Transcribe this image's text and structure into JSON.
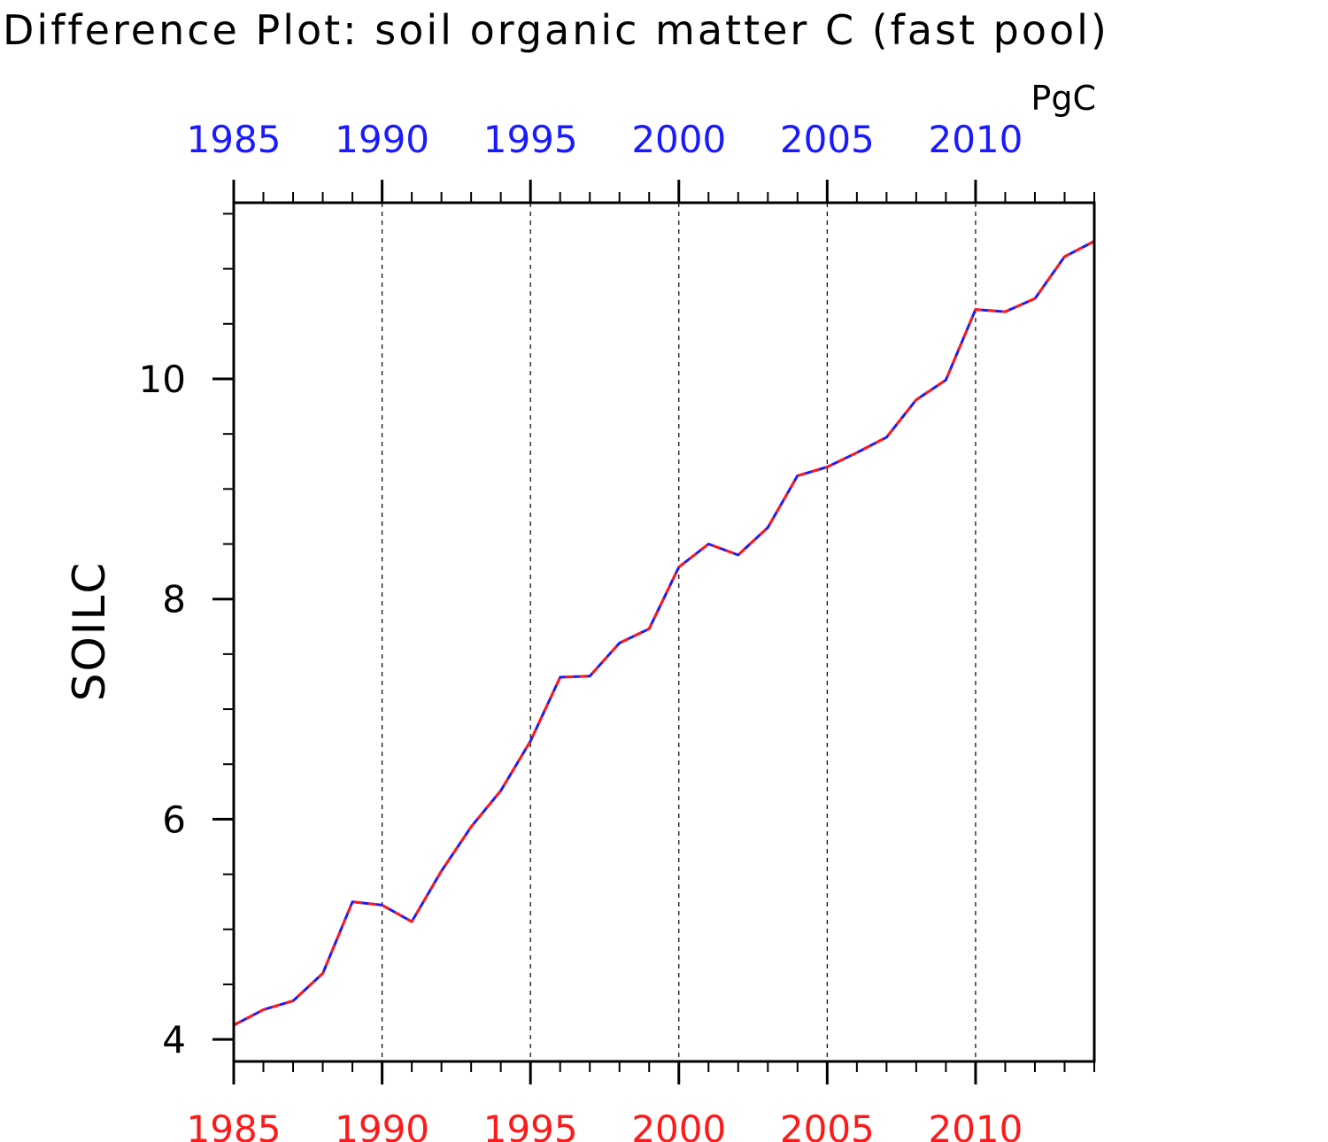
{
  "title": "Difference Plot: soil organic matter C (fast pool)",
  "units": "PgC",
  "colors": {
    "top_axis": "#1a1aff",
    "bottom_axis": "#ff1a1a",
    "axis": "#000000",
    "grid": "#000000"
  },
  "chart_data": {
    "type": "line",
    "title": "Difference Plot: soil organic matter C (fast pool)",
    "units": "PgC",
    "xlabel": "",
    "ylabel": "SOILC",
    "xlim": [
      1985,
      2014
    ],
    "ylim": [
      3.8,
      11.6
    ],
    "x_ticks": [
      1985,
      1990,
      1995,
      2000,
      2005,
      2010
    ],
    "x_tick_labels_top": [
      "1985",
      "1990",
      "1995",
      "2000",
      "2005",
      "2010"
    ],
    "x_tick_labels_bottom": [
      "1985",
      "1990",
      "1995",
      "2000",
      "2005",
      "2010"
    ],
    "y_ticks": [
      4,
      6,
      8,
      10
    ],
    "y_tick_labels": [
      "4",
      "6",
      "8",
      "10"
    ],
    "grid": "vertical dashed at major x ticks",
    "legend": "none",
    "x": [
      1985,
      1986,
      1987,
      1988,
      1989,
      1990,
      1991,
      1992,
      1993,
      1994,
      1995,
      1996,
      1997,
      1998,
      1999,
      2000,
      2001,
      2002,
      2003,
      2004,
      2005,
      2006,
      2007,
      2008,
      2009,
      2010,
      2011,
      2012,
      2013,
      2014
    ],
    "series": [
      {
        "color": "#1a1aff",
        "style": "solid",
        "values": [
          4.13,
          4.27,
          4.35,
          4.6,
          5.25,
          5.22,
          5.07,
          5.53,
          5.93,
          6.26,
          6.71,
          7.29,
          7.3,
          7.6,
          7.73,
          8.29,
          8.5,
          8.4,
          8.65,
          9.12,
          9.2,
          9.33,
          9.47,
          9.81,
          9.99,
          10.63,
          10.61,
          10.73,
          11.11,
          11.25
        ]
      },
      {
        "color": "#ff1a1a",
        "style": "dashed",
        "values": [
          4.13,
          4.27,
          4.35,
          4.6,
          5.25,
          5.22,
          5.07,
          5.53,
          5.93,
          6.26,
          6.71,
          7.29,
          7.3,
          7.6,
          7.73,
          8.29,
          8.5,
          8.4,
          8.65,
          9.12,
          9.2,
          9.33,
          9.47,
          9.81,
          9.99,
          10.63,
          10.61,
          10.73,
          11.11,
          11.25
        ]
      }
    ]
  }
}
